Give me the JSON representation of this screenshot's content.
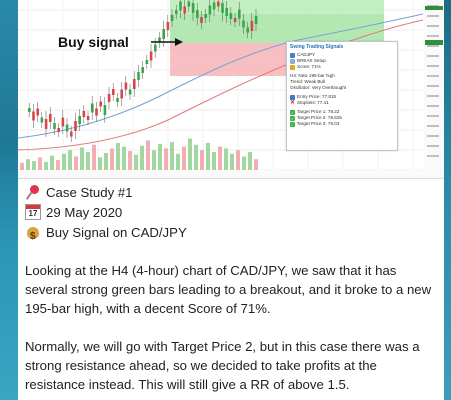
{
  "chart_annotation": {
    "buy_label": "Buy signal"
  },
  "signal_panel": {
    "title": "Swing Trading Signals",
    "symbol": "CADJPY",
    "setup": "BREAK Setup",
    "score": "Score: 71%",
    "lines": [
      "H4: New 195-bar high",
      "Trend: Weak Bull",
      "Oscillator: Very Overbought"
    ],
    "entry": "Entry Price: 77.815",
    "stoploss": "Stoploss: 77.41",
    "targets": [
      "Target Price 1: 78.22",
      "Target Price 2: 78.625",
      "Target Price 3: 79.03"
    ]
  },
  "post": {
    "case_study": "Case Study #1",
    "date": "29 May 2020",
    "calendar_day": "17",
    "signal": "Buy Signal on CAD/JPY",
    "paragraph1": "Looking at the H4 (4-hour) chart of CAD/JPY, we saw that it has several strong green bars leading to a breakout, and it broke to a new 195-bar high, with a decent Score of 71%.",
    "paragraph2": "Normally, we will go with Target Price 2, but in this case there was a strong resistance ahead, so we decided to take profits at the resistance instead. This will still give a RR of above 1.5."
  },
  "icons": {
    "case_study": "pushpin-icon",
    "date": "calendar-icon",
    "signal": "money-bag-icon"
  },
  "colors": {
    "bull_candle": "#3aa64a",
    "bear_candle": "#d9464a",
    "profit_zone": "#9be09a",
    "loss_zone": "#f6a9ad",
    "link_blue": "#2a73b5"
  }
}
